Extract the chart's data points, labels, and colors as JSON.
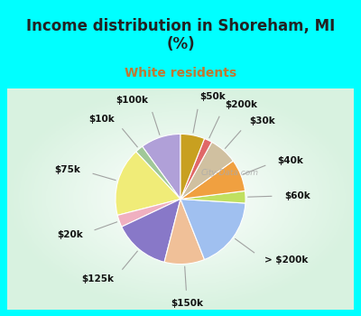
{
  "title": "Income distribution in Shoreham, MI\n(%)",
  "subtitle": "White residents",
  "bg_cyan": "#00FFFF",
  "labels": [
    "$100k",
    "$10k",
    "$75k",
    "$20k",
    "$125k",
    "$150k",
    "> $200k",
    "$60k",
    "$40k",
    "$30k",
    "$200k",
    "$50k"
  ],
  "values": [
    10,
    2,
    17,
    3,
    14,
    10,
    18,
    3,
    8,
    7,
    2,
    6
  ],
  "colors": [
    "#b0a0d8",
    "#a0c898",
    "#f0ec78",
    "#f0b0c0",
    "#8878c8",
    "#f0c098",
    "#a0c0f0",
    "#c0e060",
    "#f0a040",
    "#d0c0a0",
    "#e06868",
    "#c8a020"
  ],
  "startangle": 90,
  "watermark": "City-Data.com",
  "title_fontsize": 12,
  "subtitle_fontsize": 10,
  "label_fontsize": 7.5,
  "title_color": "#222222",
  "subtitle_color": "#c07830"
}
